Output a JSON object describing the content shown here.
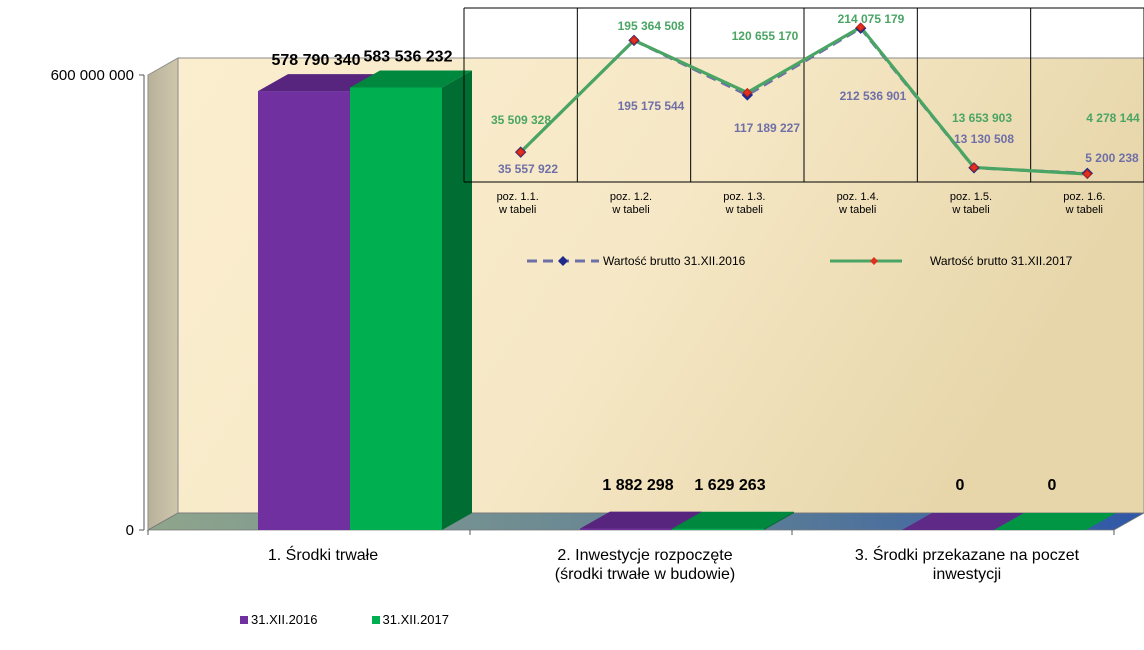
{
  "chart_data": [
    {
      "type": "bar",
      "categories": [
        "1. Środki trwałe",
        "2. Inwestycje rozpoczęte (środki trwałe w budowie)",
        "3. Środki przekazane na poczet inwestycji"
      ],
      "category_lines": [
        [
          "1. Środki trwałe"
        ],
        [
          "2. Inwestycje rozpoczęte",
          "(środki trwałe w budowie)"
        ],
        [
          "3. Środki przekazane na poczet",
          "inwestycji"
        ]
      ],
      "series": [
        {
          "name": "31.XII.2016",
          "color": "#7030a0",
          "values": [
            578790340,
            1882298,
            0
          ],
          "labels": [
            "578 790 340",
            "1 882 298",
            "0"
          ]
        },
        {
          "name": "31.XII.2017",
          "color": "#00b050",
          "values": [
            583536232,
            1629263,
            0
          ],
          "labels": [
            "583 536 232",
            "1 629 263",
            "0"
          ]
        }
      ],
      "ylim": [
        0,
        600000000
      ],
      "y_ticks": [
        "0",
        "600 000 000"
      ],
      "legend_placement": "bottom-left"
    },
    {
      "type": "line",
      "categories": [
        [
          "poz. 1.1.",
          "w tabeli"
        ],
        [
          "poz. 1.2.",
          "w tabeli"
        ],
        [
          "poz. 1.3.",
          "w tabeli"
        ],
        [
          "poz. 1.4.",
          "w tabeli"
        ],
        [
          "poz. 1.5.",
          "w tabeli"
        ],
        [
          "poz. 1.6.",
          "w tabeli"
        ]
      ],
      "series": [
        {
          "name": "Wartość brutto 31.XII.2016",
          "color": "#6f6fa8",
          "dashed": true,
          "values": [
            35557922,
            195175544,
            117189227,
            212536901,
            13130508,
            5200238
          ],
          "labels": [
            "35 557 922",
            "195 175 544",
            "117 189 227",
            "212 536 901",
            "13 130 508",
            "5 200 238"
          ]
        },
        {
          "name": "Wartość brutto 31.XII.2017",
          "color": "#4aa564",
          "dashed": false,
          "values": [
            35509328,
            195364508,
            120655170,
            214075179,
            13653903,
            4278144
          ],
          "labels": [
            "35 509 328",
            "195 364 508",
            "120 655 170",
            "214 075 179",
            "13 653 903",
            "4 278 144"
          ]
        }
      ],
      "grid": true,
      "legend_placement": "bottom"
    }
  ]
}
